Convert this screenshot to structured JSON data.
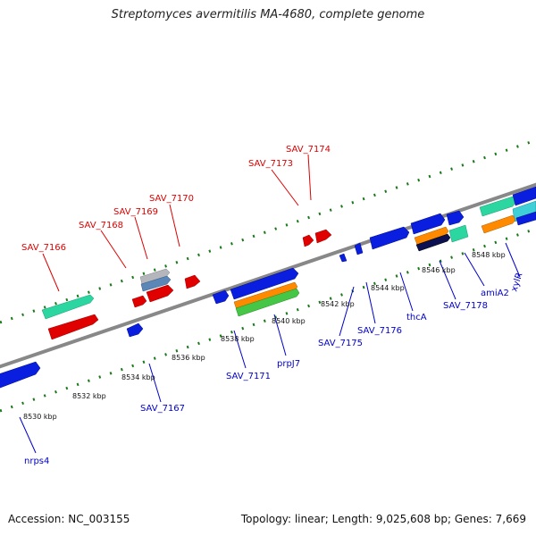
{
  "title": "Streptomyces avermitilis MA-4680, complete genome",
  "footer": {
    "accession": "Accession: NC_003155",
    "stats": "Topology: linear; Length: 9,025,608 bp; Genes: 7,669"
  },
  "colors": {
    "backbone": "#888888",
    "tick": "#1a7a1a",
    "forward_label": "#dd0000",
    "reverse_label": "#0000cc"
  },
  "kbp_markers": [
    "8530 kbp",
    "8532 kbp",
    "8534 kbp",
    "8536 kbp",
    "8538 kbp",
    "8540 kbp",
    "8542 kbp",
    "8544 kbp",
    "8546 kbp",
    "8548 kbp"
  ],
  "forward_labels": [
    "SAV_7166",
    "SAV_7168",
    "SAV_7169",
    "SAV_7170",
    "SAV_7173",
    "SAV_7174"
  ],
  "reverse_labels": [
    "nrps4",
    "SAV_7167",
    "SAV_7171",
    "prpJ7",
    "SAV_7175",
    "SAV_7176",
    "thcA",
    "SAV_7178",
    "amiA2",
    "xylR"
  ],
  "features": {
    "forward": [
      "red-gene",
      "teal-feature",
      "gray-feature",
      "blue-feature"
    ],
    "reverse": [
      "blue-gene",
      "orange-feature",
      "green-feature",
      "navy-feature",
      "teal-feature"
    ]
  }
}
